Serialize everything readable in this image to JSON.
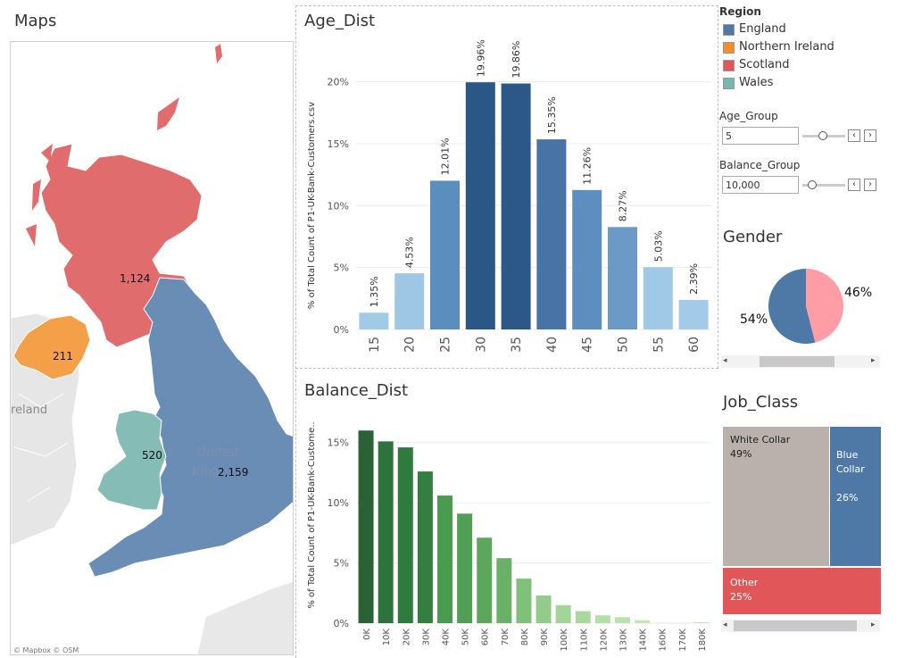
{
  "maps": {
    "title": "Maps",
    "labels": {
      "scotland": "1,124",
      "northern_ireland": "211",
      "wales": "520",
      "england": "2,159",
      "united_kingdom": "United\nKingdom",
      "ireland": "reland"
    },
    "attribution": "© Mapbox © OSM",
    "colors": {
      "scotland": "#e06c6e",
      "northern_ireland": "#f4a048",
      "wales": "#86bcb6",
      "england": "#6a8db5",
      "land": "#e8e8e8",
      "sea": "#ffffff"
    }
  },
  "legend": {
    "title": "Region",
    "items": [
      {
        "label": "England",
        "color": "#4e79a7"
      },
      {
        "label": "Northern Ireland",
        "color": "#f28e2b"
      },
      {
        "label": "Scotland",
        "color": "#e15759"
      },
      {
        "label": "Wales",
        "color": "#76b7b2"
      }
    ]
  },
  "params": {
    "age_group": {
      "label": "Age_Group",
      "value": "5"
    },
    "balance_group": {
      "label": "Balance_Group",
      "value": "10,000"
    }
  },
  "gender": {
    "title": "Gender",
    "male_label": "54%",
    "female_label": "46%"
  },
  "job_class": {
    "title": "Job_Class",
    "white_collar": {
      "name": "White Collar",
      "pct": "49%"
    },
    "blue_collar": {
      "name": "Blue\nCollar",
      "pct": "26%"
    },
    "other": {
      "name": "Other",
      "pct": "25%"
    }
  },
  "chart_data": [
    {
      "type": "bar",
      "title": "Age_Dist",
      "ylabel": "% of Total Count of P1-UK-Bank-Customers.csv",
      "xlabel": "",
      "categories": [
        "15",
        "20",
        "25",
        "30",
        "35",
        "40",
        "45",
        "50",
        "55",
        "60"
      ],
      "values": [
        1.35,
        4.53,
        12.01,
        19.96,
        19.86,
        15.35,
        11.26,
        8.27,
        5.03,
        2.39
      ],
      "data_labels": [
        "1.35%",
        "4.53%",
        "12.01%",
        "19.96%",
        "19.86%",
        "15.35%",
        "11.26%",
        "8.27%",
        "5.03%",
        "2.39%"
      ],
      "yticks": [
        "0%",
        "5%",
        "10%",
        "15%",
        "20%"
      ],
      "ylim": [
        0,
        23
      ],
      "colors": [
        "#a0cbe8",
        "#9ec7e6",
        "#5b8dbf",
        "#2b5787",
        "#2c5887",
        "#4873a6",
        "#5e8ec0",
        "#6b9ac7",
        "#9fc9e6",
        "#a3cbe8"
      ]
    },
    {
      "type": "bar",
      "title": "Balance_Dist",
      "ylabel": "% of Total Count of P1-UK-Bank-Custome..",
      "xlabel": "",
      "categories": [
        "0K",
        "10K",
        "20K",
        "30K",
        "40K",
        "50K",
        "60K",
        "70K",
        "80K",
        "90K",
        "100K",
        "110K",
        "120K",
        "130K",
        "140K",
        "160K",
        "170K",
        "180K"
      ],
      "values": [
        16.0,
        15.1,
        14.6,
        12.6,
        10.6,
        9.1,
        7.1,
        5.4,
        3.7,
        2.3,
        1.5,
        1.0,
        0.65,
        0.5,
        0.25,
        0.03,
        0.03,
        0.08
      ],
      "yticks": [
        "0%",
        "5%",
        "10%",
        "15%"
      ],
      "ylim": [
        0,
        17.5
      ],
      "colors": [
        "#2a6236",
        "#2e733b",
        "#2f7a3d",
        "#347f40",
        "#4a9a4f",
        "#519f54",
        "#5ca75c",
        "#6ab168",
        "#7fc07a",
        "#93cc8a",
        "#a3d696",
        "#a9d89c",
        "#b6dfa7",
        "#bce2ac",
        "#c4e6b3",
        "#c9e8b8",
        "#c9e8b8",
        "#c2e5b0"
      ]
    },
    {
      "type": "pie",
      "title": "Gender",
      "values": [
        54,
        46
      ],
      "labels": [
        "54%",
        "46%"
      ],
      "colors": [
        "#4e79a7",
        "#ff9da7"
      ]
    }
  ]
}
